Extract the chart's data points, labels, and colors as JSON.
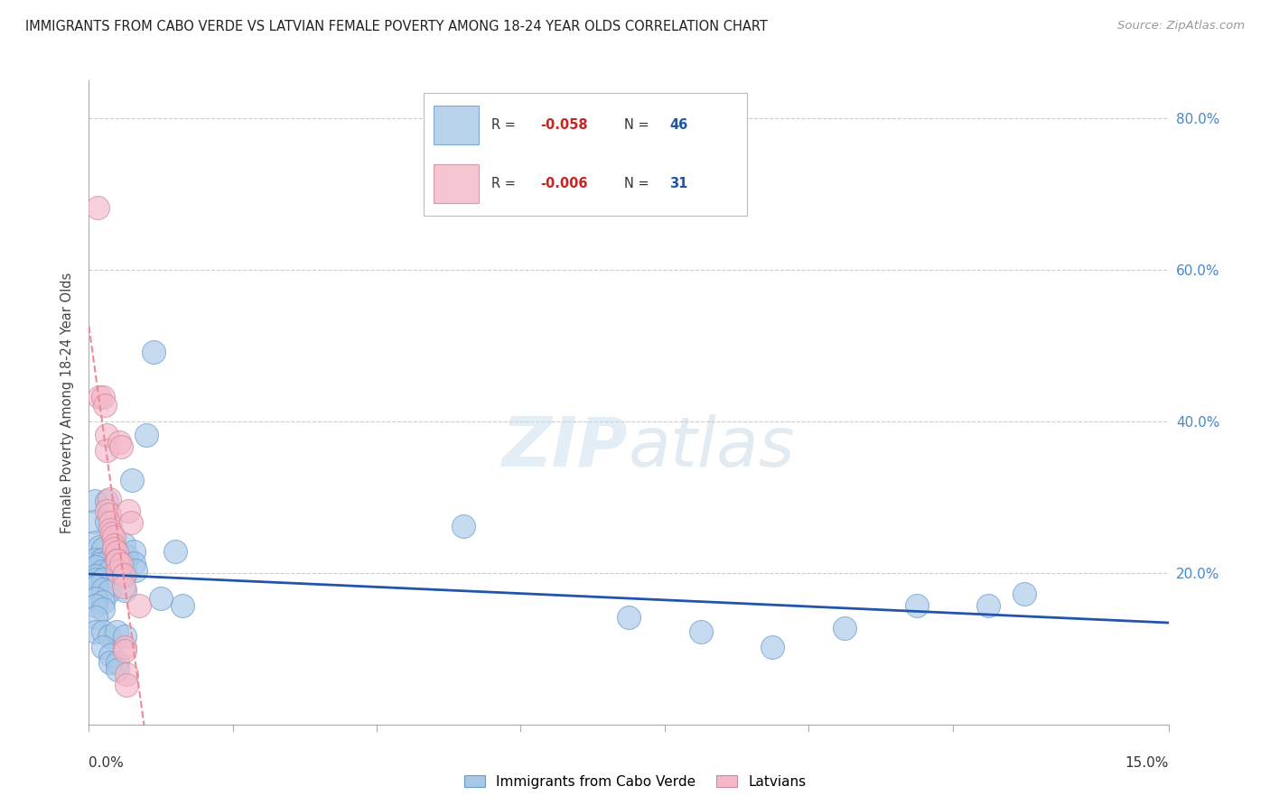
{
  "title": "IMMIGRANTS FROM CABO VERDE VS LATVIAN FEMALE POVERTY AMONG 18-24 YEAR OLDS CORRELATION CHART",
  "source": "Source: ZipAtlas.com",
  "ylabel": "Female Poverty Among 18-24 Year Olds",
  "x_min": 0.0,
  "x_max": 0.15,
  "y_min": 0.0,
  "y_max": 0.85,
  "y_ticks": [
    0.2,
    0.4,
    0.6,
    0.8
  ],
  "y_tick_labels": [
    "20.0%",
    "40.0%",
    "60.0%",
    "80.0%"
  ],
  "cabo_verde_color": "#a8c8e8",
  "cabo_verde_edge": "#6699cc",
  "latvian_color": "#f4b8c8",
  "latvian_edge": "#cc8899",
  "trend_cabo_color": "#2255aa",
  "trend_latvian_color": "#ee8899",
  "watermark_color": "#ddeeff",
  "cabo_verde_points": [
    [
      0.0008,
      0.295
    ],
    [
      0.0025,
      0.295
    ],
    [
      0.0008,
      0.268
    ],
    [
      0.0025,
      0.268
    ],
    [
      0.001,
      0.24
    ],
    [
      0.0015,
      0.235
    ],
    [
      0.002,
      0.232
    ],
    [
      0.0008,
      0.218
    ],
    [
      0.0018,
      0.218
    ],
    [
      0.0028,
      0.218
    ],
    [
      0.0015,
      0.212
    ],
    [
      0.001,
      0.208
    ],
    [
      0.0018,
      0.202
    ],
    [
      0.0028,
      0.202
    ],
    [
      0.001,
      0.196
    ],
    [
      0.001,
      0.191
    ],
    [
      0.002,
      0.191
    ],
    [
      0.001,
      0.182
    ],
    [
      0.002,
      0.179
    ],
    [
      0.0028,
      0.176
    ],
    [
      0.001,
      0.167
    ],
    [
      0.002,
      0.162
    ],
    [
      0.001,
      0.157
    ],
    [
      0.002,
      0.152
    ],
    [
      0.001,
      0.142
    ],
    [
      0.001,
      0.122
    ],
    [
      0.002,
      0.122
    ],
    [
      0.0028,
      0.117
    ],
    [
      0.0038,
      0.122
    ],
    [
      0.002,
      0.102
    ],
    [
      0.003,
      0.092
    ],
    [
      0.003,
      0.082
    ],
    [
      0.004,
      0.082
    ],
    [
      0.004,
      0.072
    ],
    [
      0.0048,
      0.238
    ],
    [
      0.0052,
      0.222
    ],
    [
      0.005,
      0.212
    ],
    [
      0.005,
      0.197
    ],
    [
      0.005,
      0.177
    ],
    [
      0.005,
      0.117
    ],
    [
      0.006,
      0.322
    ],
    [
      0.0062,
      0.228
    ],
    [
      0.0062,
      0.213
    ],
    [
      0.0065,
      0.203
    ],
    [
      0.008,
      0.382
    ],
    [
      0.009,
      0.492
    ],
    [
      0.01,
      0.167
    ],
    [
      0.012,
      0.228
    ],
    [
      0.013,
      0.157
    ],
    [
      0.052,
      0.262
    ],
    [
      0.075,
      0.142
    ],
    [
      0.085,
      0.122
    ],
    [
      0.095,
      0.102
    ],
    [
      0.105,
      0.127
    ],
    [
      0.115,
      0.157
    ],
    [
      0.125,
      0.157
    ],
    [
      0.13,
      0.172
    ]
  ],
  "latvian_points": [
    [
      0.0012,
      0.682
    ],
    [
      0.0015,
      0.432
    ],
    [
      0.002,
      0.432
    ],
    [
      0.0022,
      0.422
    ],
    [
      0.0025,
      0.382
    ],
    [
      0.0025,
      0.362
    ],
    [
      0.0028,
      0.297
    ],
    [
      0.0025,
      0.282
    ],
    [
      0.0028,
      0.277
    ],
    [
      0.003,
      0.267
    ],
    [
      0.003,
      0.257
    ],
    [
      0.0032,
      0.252
    ],
    [
      0.0035,
      0.247
    ],
    [
      0.0035,
      0.237
    ],
    [
      0.0035,
      0.232
    ],
    [
      0.0038,
      0.227
    ],
    [
      0.0038,
      0.217
    ],
    [
      0.004,
      0.217
    ],
    [
      0.004,
      0.202
    ],
    [
      0.0042,
      0.372
    ],
    [
      0.0045,
      0.367
    ],
    [
      0.0045,
      0.212
    ],
    [
      0.0048,
      0.197
    ],
    [
      0.0048,
      0.182
    ],
    [
      0.005,
      0.102
    ],
    [
      0.005,
      0.097
    ],
    [
      0.0052,
      0.067
    ],
    [
      0.0052,
      0.052
    ],
    [
      0.0055,
      0.282
    ],
    [
      0.0058,
      0.267
    ],
    [
      0.007,
      0.157
    ]
  ]
}
